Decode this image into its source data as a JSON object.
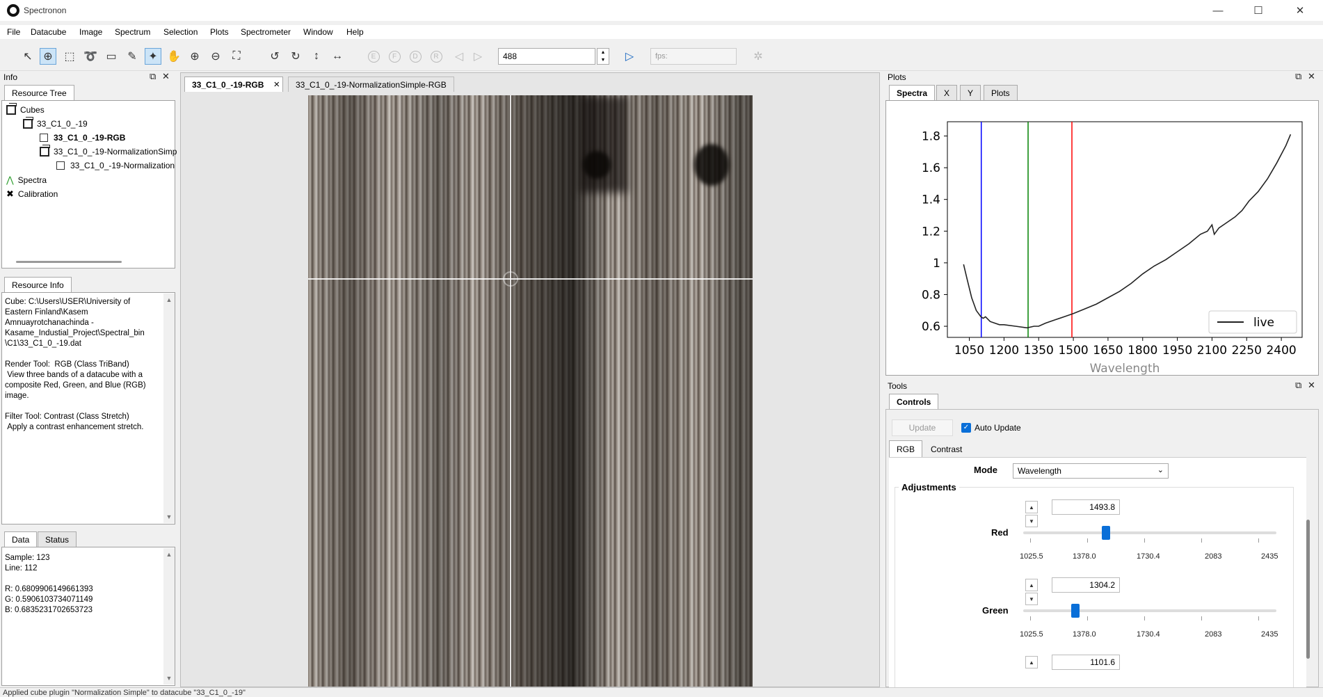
{
  "window": {
    "title": "Spectronon",
    "minimize": "—",
    "maximize": "☐",
    "close": "✕"
  },
  "menu": [
    "File",
    "Datacube",
    "Image",
    "Spectrum",
    "Selection",
    "Plots",
    "Spectrometer",
    "Window",
    "Help"
  ],
  "toolbar": {
    "band_value": "488",
    "fps_placeholder": "fps:"
  },
  "info_panel": {
    "title": "Info",
    "tab": "Resource Tree",
    "tree": {
      "cubes": "Cubes",
      "cube1": "33_C1_0_-19",
      "rgb": "33_C1_0_-19-RGB",
      "norm": "33_C1_0_-19-NormalizationSimp",
      "norm_child": "33_C1_0_-19-Normalization",
      "spectra": "Spectra",
      "calibration": "Calibration"
    }
  },
  "resource_info": {
    "tab": "Resource Info",
    "text": "Cube: C:\\Users\\USER\\University of\nEastern Finland\\Kasem\nAmnuayrotchanachinda -\nKasame_Industial_Project\\Spectral_bin\n\\C1\\33_C1_0_-19.dat\n\nRender Tool:  RGB (Class TriBand)\n View three bands of a datacube with a\ncomposite Red, Green, and Blue (RGB)\nimage.\n\nFilter Tool: Contrast (Class Stretch)\n Apply a contrast enhancement stretch."
  },
  "data_panel": {
    "tabs": [
      "Data",
      "Status"
    ],
    "text": "Sample: 123\nLine: 112\n\nR: 0.6809906149661393\nG: 0.5906103734071149\nB: 0.6835231702653723"
  },
  "image_tabs": [
    "33_C1_0_-19-RGB",
    "33_C1_0_-19-NormalizationSimple-RGB"
  ],
  "image_tab_close": "×",
  "plots_panel": {
    "title": "Plots",
    "tabs": [
      "Spectra",
      "X",
      "Y",
      "Plots"
    ]
  },
  "chart_data": {
    "type": "line",
    "xlabel": "Wavelength",
    "ylabel": "",
    "xlim": [
      955,
      2490
    ],
    "ylim": [
      0.53,
      1.89
    ],
    "xticks": [
      1050,
      1200,
      1350,
      1500,
      1650,
      1800,
      1950,
      2100,
      2250,
      2400
    ],
    "yticks": [
      0.6,
      0.8,
      1,
      1.2,
      1.4,
      1.6,
      1.8
    ],
    "ytick_labels": [
      "0.6",
      "0.8",
      "1",
      "1.2",
      "1.4",
      "1.6",
      "1.8"
    ],
    "legend": {
      "position": "bottom-right",
      "entries": [
        "live"
      ]
    },
    "vlines": [
      {
        "x": 1101.6,
        "color": "#0000ff"
      },
      {
        "x": 1304.2,
        "color": "#008000"
      },
      {
        "x": 1493.8,
        "color": "#ff0000"
      }
    ],
    "series": [
      {
        "name": "live",
        "color": "#222222",
        "x": [
          1025,
          1040,
          1060,
          1080,
          1100,
          1110,
          1120,
          1140,
          1160,
          1180,
          1200,
          1250,
          1300,
          1330,
          1350,
          1380,
          1420,
          1460,
          1500,
          1550,
          1600,
          1650,
          1700,
          1750,
          1800,
          1850,
          1900,
          1950,
          2000,
          2050,
          2080,
          2100,
          2110,
          2130,
          2160,
          2200,
          2230,
          2260,
          2300,
          2340,
          2380,
          2420,
          2440
        ],
        "values": [
          0.99,
          0.9,
          0.78,
          0.7,
          0.66,
          0.65,
          0.66,
          0.63,
          0.62,
          0.61,
          0.61,
          0.6,
          0.59,
          0.6,
          0.6,
          0.62,
          0.64,
          0.66,
          0.68,
          0.71,
          0.74,
          0.78,
          0.82,
          0.87,
          0.93,
          0.98,
          1.02,
          1.07,
          1.12,
          1.18,
          1.2,
          1.24,
          1.18,
          1.22,
          1.25,
          1.29,
          1.33,
          1.39,
          1.45,
          1.53,
          1.63,
          1.74,
          1.81
        ]
      }
    ]
  },
  "tools_panel": {
    "title": "Tools",
    "tab": "Controls",
    "update_btn": "Update",
    "auto_update_label": "Auto Update",
    "auto_update": true,
    "subtabs": [
      "RGB",
      "Contrast"
    ],
    "mode_label": "Mode",
    "mode_value": "Wavelength",
    "adjustments_label": "Adjustments",
    "slider_ticks": [
      "1025.5",
      "1378.0",
      "1730.4",
      "2083",
      "2435"
    ],
    "slider_range": [
      1025.5,
      2435
    ],
    "red": {
      "label": "Red",
      "value": "1493.8"
    },
    "green": {
      "label": "Green",
      "value": "1304.2"
    },
    "blue": {
      "value": "1101.6"
    }
  },
  "status_bar": "Applied cube plugin \"Normalization Simple\" to datacube \"33_C1_0_-19\""
}
